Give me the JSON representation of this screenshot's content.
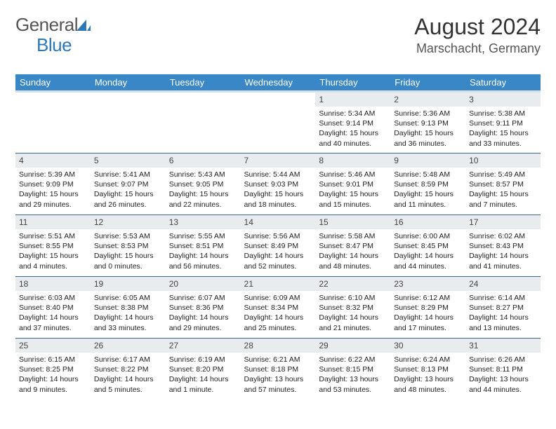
{
  "logo": {
    "general": "General",
    "blue": "Blue"
  },
  "title": "August 2024",
  "location": "Marschacht, Germany",
  "colors": {
    "header_bg": "#3a87c7",
    "header_underline": "#d9e0e5",
    "row_divider": "#3a6a94",
    "daynum_bg": "#e9ecef",
    "logo_blue": "#2f78b8"
  },
  "day_names": [
    "Sunday",
    "Monday",
    "Tuesday",
    "Wednesday",
    "Thursday",
    "Friday",
    "Saturday"
  ],
  "weeks": [
    [
      {
        "empty": true
      },
      {
        "empty": true
      },
      {
        "empty": true
      },
      {
        "empty": true
      },
      {
        "num": "1",
        "sunrise": "Sunrise: 5:34 AM",
        "sunset": "Sunset: 9:14 PM",
        "daylight1": "Daylight: 15 hours",
        "daylight2": "and 40 minutes."
      },
      {
        "num": "2",
        "sunrise": "Sunrise: 5:36 AM",
        "sunset": "Sunset: 9:13 PM",
        "daylight1": "Daylight: 15 hours",
        "daylight2": "and 36 minutes."
      },
      {
        "num": "3",
        "sunrise": "Sunrise: 5:38 AM",
        "sunset": "Sunset: 9:11 PM",
        "daylight1": "Daylight: 15 hours",
        "daylight2": "and 33 minutes."
      }
    ],
    [
      {
        "num": "4",
        "sunrise": "Sunrise: 5:39 AM",
        "sunset": "Sunset: 9:09 PM",
        "daylight1": "Daylight: 15 hours",
        "daylight2": "and 29 minutes."
      },
      {
        "num": "5",
        "sunrise": "Sunrise: 5:41 AM",
        "sunset": "Sunset: 9:07 PM",
        "daylight1": "Daylight: 15 hours",
        "daylight2": "and 26 minutes."
      },
      {
        "num": "6",
        "sunrise": "Sunrise: 5:43 AM",
        "sunset": "Sunset: 9:05 PM",
        "daylight1": "Daylight: 15 hours",
        "daylight2": "and 22 minutes."
      },
      {
        "num": "7",
        "sunrise": "Sunrise: 5:44 AM",
        "sunset": "Sunset: 9:03 PM",
        "daylight1": "Daylight: 15 hours",
        "daylight2": "and 18 minutes."
      },
      {
        "num": "8",
        "sunrise": "Sunrise: 5:46 AM",
        "sunset": "Sunset: 9:01 PM",
        "daylight1": "Daylight: 15 hours",
        "daylight2": "and 15 minutes."
      },
      {
        "num": "9",
        "sunrise": "Sunrise: 5:48 AM",
        "sunset": "Sunset: 8:59 PM",
        "daylight1": "Daylight: 15 hours",
        "daylight2": "and 11 minutes."
      },
      {
        "num": "10",
        "sunrise": "Sunrise: 5:49 AM",
        "sunset": "Sunset: 8:57 PM",
        "daylight1": "Daylight: 15 hours",
        "daylight2": "and 7 minutes."
      }
    ],
    [
      {
        "num": "11",
        "sunrise": "Sunrise: 5:51 AM",
        "sunset": "Sunset: 8:55 PM",
        "daylight1": "Daylight: 15 hours",
        "daylight2": "and 4 minutes."
      },
      {
        "num": "12",
        "sunrise": "Sunrise: 5:53 AM",
        "sunset": "Sunset: 8:53 PM",
        "daylight1": "Daylight: 15 hours",
        "daylight2": "and 0 minutes."
      },
      {
        "num": "13",
        "sunrise": "Sunrise: 5:55 AM",
        "sunset": "Sunset: 8:51 PM",
        "daylight1": "Daylight: 14 hours",
        "daylight2": "and 56 minutes."
      },
      {
        "num": "14",
        "sunrise": "Sunrise: 5:56 AM",
        "sunset": "Sunset: 8:49 PM",
        "daylight1": "Daylight: 14 hours",
        "daylight2": "and 52 minutes."
      },
      {
        "num": "15",
        "sunrise": "Sunrise: 5:58 AM",
        "sunset": "Sunset: 8:47 PM",
        "daylight1": "Daylight: 14 hours",
        "daylight2": "and 48 minutes."
      },
      {
        "num": "16",
        "sunrise": "Sunrise: 6:00 AM",
        "sunset": "Sunset: 8:45 PM",
        "daylight1": "Daylight: 14 hours",
        "daylight2": "and 44 minutes."
      },
      {
        "num": "17",
        "sunrise": "Sunrise: 6:02 AM",
        "sunset": "Sunset: 8:43 PM",
        "daylight1": "Daylight: 14 hours",
        "daylight2": "and 41 minutes."
      }
    ],
    [
      {
        "num": "18",
        "sunrise": "Sunrise: 6:03 AM",
        "sunset": "Sunset: 8:40 PM",
        "daylight1": "Daylight: 14 hours",
        "daylight2": "and 37 minutes."
      },
      {
        "num": "19",
        "sunrise": "Sunrise: 6:05 AM",
        "sunset": "Sunset: 8:38 PM",
        "daylight1": "Daylight: 14 hours",
        "daylight2": "and 33 minutes."
      },
      {
        "num": "20",
        "sunrise": "Sunrise: 6:07 AM",
        "sunset": "Sunset: 8:36 PM",
        "daylight1": "Daylight: 14 hours",
        "daylight2": "and 29 minutes."
      },
      {
        "num": "21",
        "sunrise": "Sunrise: 6:09 AM",
        "sunset": "Sunset: 8:34 PM",
        "daylight1": "Daylight: 14 hours",
        "daylight2": "and 25 minutes."
      },
      {
        "num": "22",
        "sunrise": "Sunrise: 6:10 AM",
        "sunset": "Sunset: 8:32 PM",
        "daylight1": "Daylight: 14 hours",
        "daylight2": "and 21 minutes."
      },
      {
        "num": "23",
        "sunrise": "Sunrise: 6:12 AM",
        "sunset": "Sunset: 8:29 PM",
        "daylight1": "Daylight: 14 hours",
        "daylight2": "and 17 minutes."
      },
      {
        "num": "24",
        "sunrise": "Sunrise: 6:14 AM",
        "sunset": "Sunset: 8:27 PM",
        "daylight1": "Daylight: 14 hours",
        "daylight2": "and 13 minutes."
      }
    ],
    [
      {
        "num": "25",
        "sunrise": "Sunrise: 6:15 AM",
        "sunset": "Sunset: 8:25 PM",
        "daylight1": "Daylight: 14 hours",
        "daylight2": "and 9 minutes."
      },
      {
        "num": "26",
        "sunrise": "Sunrise: 6:17 AM",
        "sunset": "Sunset: 8:22 PM",
        "daylight1": "Daylight: 14 hours",
        "daylight2": "and 5 minutes."
      },
      {
        "num": "27",
        "sunrise": "Sunrise: 6:19 AM",
        "sunset": "Sunset: 8:20 PM",
        "daylight1": "Daylight: 14 hours",
        "daylight2": "and 1 minute."
      },
      {
        "num": "28",
        "sunrise": "Sunrise: 6:21 AM",
        "sunset": "Sunset: 8:18 PM",
        "daylight1": "Daylight: 13 hours",
        "daylight2": "and 57 minutes."
      },
      {
        "num": "29",
        "sunrise": "Sunrise: 6:22 AM",
        "sunset": "Sunset: 8:15 PM",
        "daylight1": "Daylight: 13 hours",
        "daylight2": "and 53 minutes."
      },
      {
        "num": "30",
        "sunrise": "Sunrise: 6:24 AM",
        "sunset": "Sunset: 8:13 PM",
        "daylight1": "Daylight: 13 hours",
        "daylight2": "and 48 minutes."
      },
      {
        "num": "31",
        "sunrise": "Sunrise: 6:26 AM",
        "sunset": "Sunset: 8:11 PM",
        "daylight1": "Daylight: 13 hours",
        "daylight2": "and 44 minutes."
      }
    ]
  ]
}
